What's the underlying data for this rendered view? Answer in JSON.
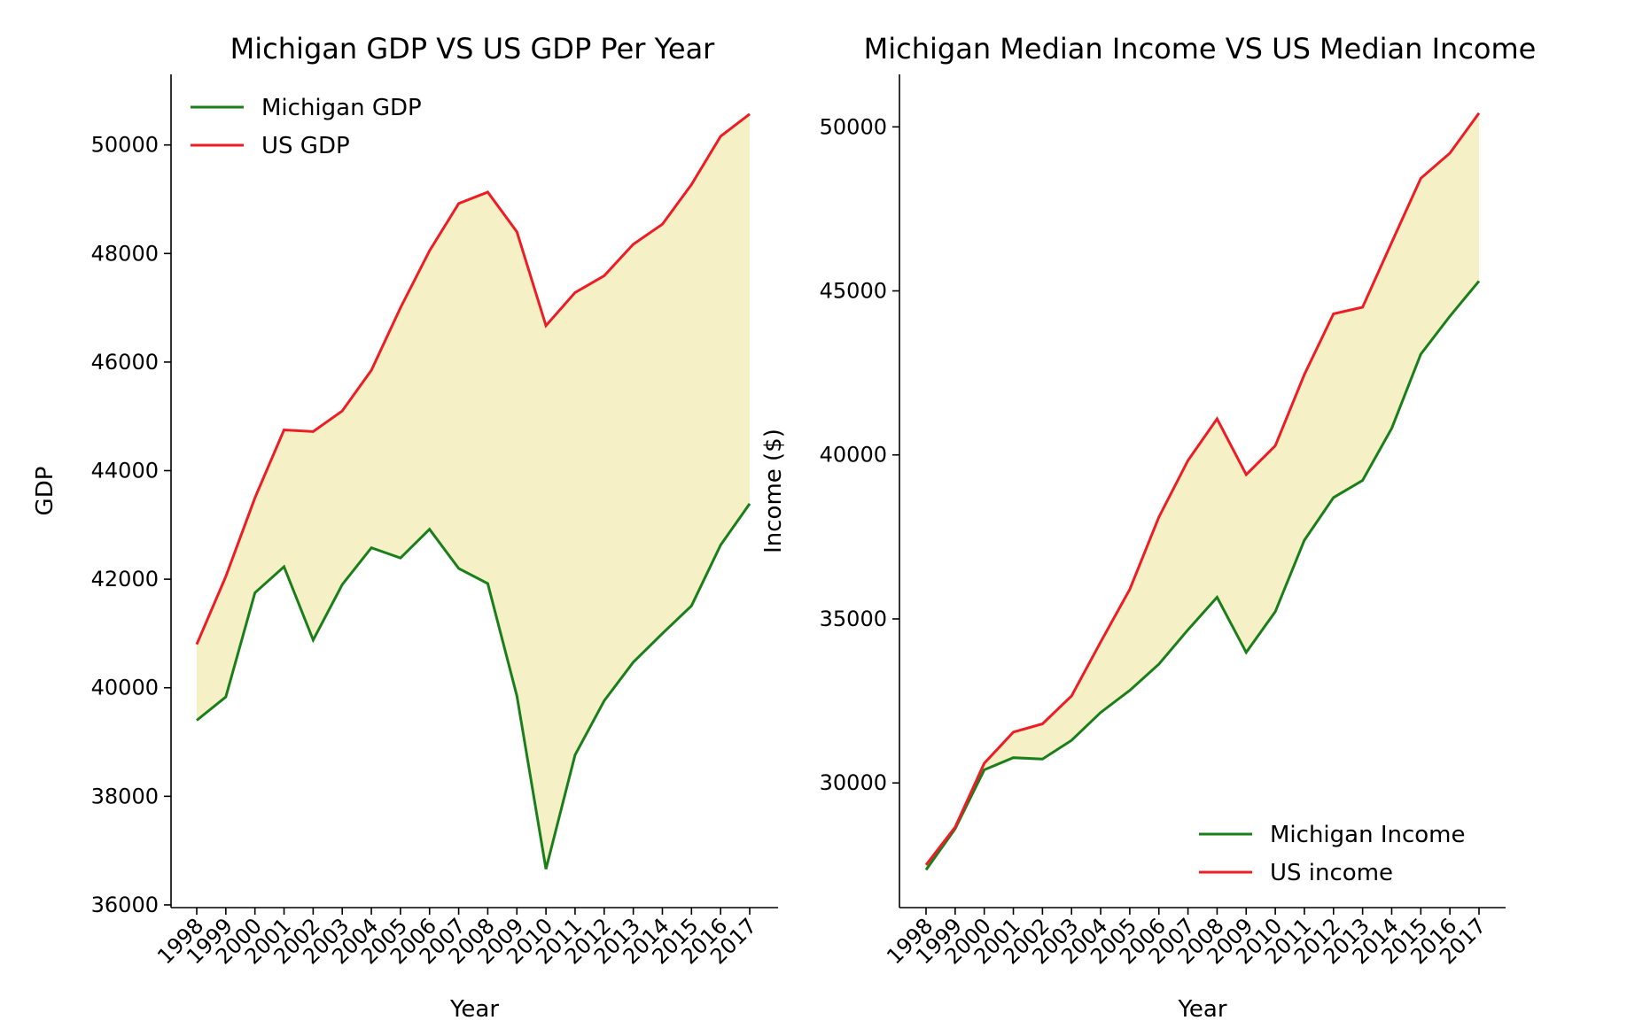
{
  "chart_data": [
    {
      "type": "line",
      "title": "Michigan GDP VS US GDP Per Year",
      "xlabel": "Year",
      "ylabel": "GDP",
      "categories": [
        "1998",
        "1999",
        "2000",
        "2001",
        "2002",
        "2003",
        "2004",
        "2005",
        "2006",
        "2007",
        "2008",
        "2009",
        "2010",
        "2011",
        "2012",
        "2013",
        "2014",
        "2015",
        "2016",
        "2017"
      ],
      "yticks": [
        36000,
        38000,
        40000,
        42000,
        44000,
        46000,
        48000,
        50000
      ],
      "ylim": [
        35950,
        51300
      ],
      "fill_between": true,
      "fill_color": "#f5f0c6",
      "legend_position": "upper-left",
      "series": [
        {
          "name": "Michigan GDP",
          "color": "#1a7f1a",
          "values": [
            39400,
            39830,
            41750,
            42230,
            40880,
            41900,
            42580,
            42390,
            42920,
            42200,
            41920,
            39850,
            36660,
            38760,
            39760,
            40470,
            41000,
            41510,
            42630,
            43390
          ]
        },
        {
          "name": "US GDP",
          "color": "#ee1c25",
          "values": [
            40800,
            42050,
            43500,
            44750,
            44720,
            45100,
            45850,
            47000,
            48050,
            48920,
            49130,
            48400,
            46670,
            47280,
            47590,
            48170,
            48540,
            49270,
            50160,
            50570
          ]
        }
      ]
    },
    {
      "type": "line",
      "title": "Michigan Median Income VS US Median Income",
      "xlabel": "Year",
      "ylabel": "Income ($)",
      "categories": [
        "1998",
        "1999",
        "2000",
        "2001",
        "2002",
        "2003",
        "2004",
        "2005",
        "2006",
        "2007",
        "2008",
        "2009",
        "2010",
        "2011",
        "2012",
        "2013",
        "2014",
        "2015",
        "2016",
        "2017"
      ],
      "yticks": [
        30000,
        35000,
        40000,
        45000,
        50000
      ],
      "ylim": [
        26200,
        51600
      ],
      "fill_between": true,
      "fill_color": "#f5f0c6",
      "legend_position": "lower-right",
      "series": [
        {
          "name": "Michigan Income",
          "color": "#1a7f1a",
          "values": [
            27350,
            28600,
            30400,
            30770,
            30730,
            31300,
            32150,
            32820,
            33620,
            34670,
            35660,
            33980,
            35220,
            37400,
            38700,
            39220,
            40810,
            43070,
            44230,
            45300
          ]
        },
        {
          "name": "US income",
          "color": "#ee1c25",
          "values": [
            27500,
            28650,
            30600,
            31550,
            31800,
            32650,
            34300,
            35900,
            38100,
            39830,
            41100,
            39400,
            40280,
            42450,
            44300,
            44500,
            46480,
            48430,
            49200,
            50420
          ]
        }
      ]
    }
  ]
}
